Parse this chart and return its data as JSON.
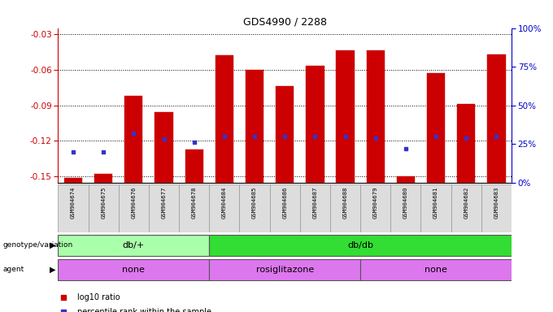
{
  "title": "GDS4990 / 2288",
  "samples": [
    "GSM904674",
    "GSM904675",
    "GSM904676",
    "GSM904677",
    "GSM904678",
    "GSM904684",
    "GSM904685",
    "GSM904686",
    "GSM904687",
    "GSM904688",
    "GSM904679",
    "GSM904680",
    "GSM904681",
    "GSM904682",
    "GSM904683"
  ],
  "log10_ratio": [
    -0.151,
    -0.148,
    -0.082,
    -0.096,
    -0.127,
    -0.048,
    -0.06,
    -0.074,
    -0.057,
    -0.044,
    -0.044,
    -0.15,
    -0.063,
    -0.089,
    -0.047
  ],
  "percentile_val": [
    20,
    20,
    32,
    28,
    26,
    30,
    30,
    30,
    30,
    30,
    29,
    22,
    30,
    29,
    30
  ],
  "bar_color": "#cc0000",
  "dot_color": "#3333cc",
  "ylim_left": [
    -0.155,
    -0.025
  ],
  "yticks_left": [
    -0.15,
    -0.12,
    -0.09,
    -0.06,
    -0.03
  ],
  "ylim_right": [
    0,
    100
  ],
  "yticks_right": [
    0,
    25,
    50,
    75,
    100
  ],
  "yticklabels_right": [
    "0%",
    "25%",
    "50%",
    "75%",
    "100%"
  ],
  "genotype_groups": [
    {
      "label": "db/+",
      "start": 0,
      "end": 5,
      "color": "#aaffaa"
    },
    {
      "label": "db/db",
      "start": 5,
      "end": 15,
      "color": "#33dd33"
    }
  ],
  "agent_groups": [
    {
      "label": "none",
      "start": 0,
      "end": 5,
      "color": "#dd77ee"
    },
    {
      "label": "rosiglitazone",
      "start": 5,
      "end": 10,
      "color": "#dd77ee"
    },
    {
      "label": "none",
      "start": 10,
      "end": 15,
      "color": "#dd77ee"
    }
  ],
  "background_color": "#ffffff",
  "left_label_color": "#cc0000",
  "right_label_color": "#0000cc"
}
